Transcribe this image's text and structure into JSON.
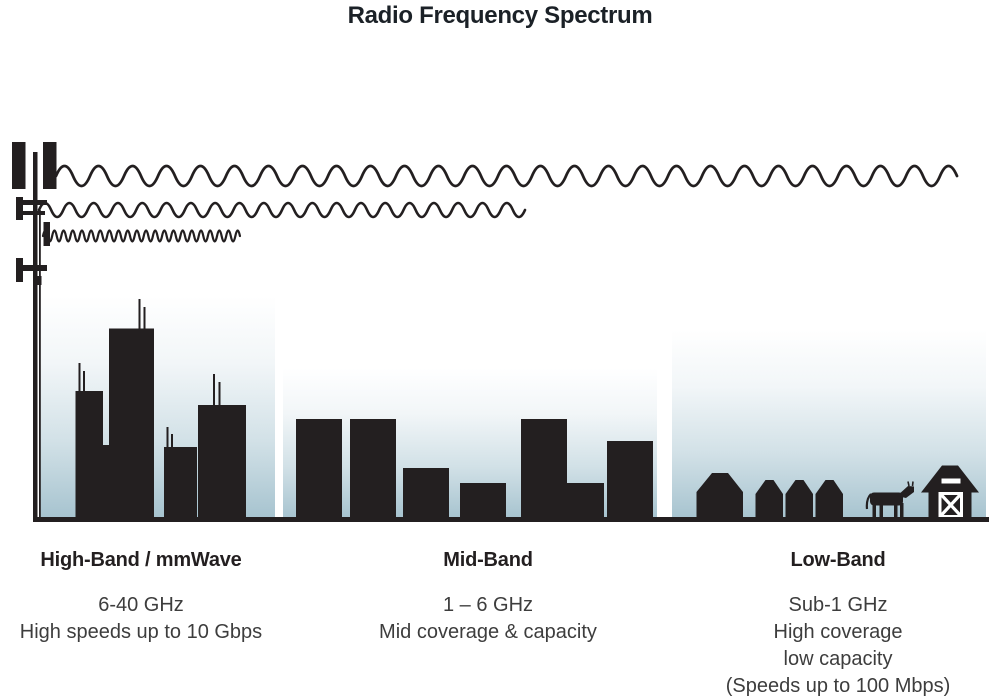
{
  "title": "Radio Frequency Spectrum",
  "colors": {
    "background": "#ffffff",
    "ink": "#231f20",
    "sky_top": "#ffffff",
    "sky_bottom": "#a6c3cf",
    "title_text": "#1b2127",
    "body_text": "#3d3d3d"
  },
  "bands": [
    {
      "heading": "High-Band / mmWave",
      "lines": [
        "6-40 GHz",
        "High speeds up to 10 Gbps"
      ]
    },
    {
      "heading": "Mid-Band",
      "lines": [
        "1 – 6 GHz",
        "Mid coverage & capacity"
      ]
    },
    {
      "heading": "Low-Band",
      "lines": [
        "Sub-1 GHz",
        "High coverage",
        "low capacity",
        "(Speeds up to 100 Mbps)"
      ]
    }
  ],
  "icons": {
    "cell_tower": "cell-tower-icon",
    "long_wavelength_wave": "wave-long-icon",
    "medium_wavelength_wave": "wave-medium-icon",
    "short_wavelength_wave": "wave-short-icon",
    "skyscraper_city": "skyscrapers-icon",
    "midrise_town": "midrise-buildings-icon",
    "rural_houses": "houses-icon",
    "cow": "cow-icon",
    "barn": "barn-icon"
  }
}
